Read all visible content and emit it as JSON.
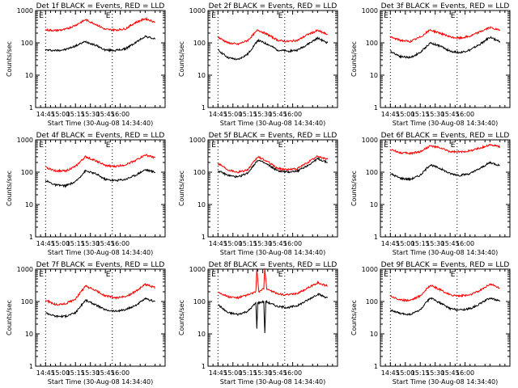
{
  "figure": {
    "title_template": "Det {det} BLACK = Events, RED = LLD",
    "ylabel": "Counts/sec",
    "xlabel": "Start Time (30-Aug-08 14:34:40)",
    "e_marker": "E",
    "colors": {
      "events": "#000000",
      "lld": "#ff0000"
    }
  },
  "chart_data": [
    {
      "type": "line",
      "title": "Det 1f BLACK = Events, RED = LLD",
      "xlabel": "Start Time (30-Aug-08 14:34:40)",
      "ylabel": "Counts/sec",
      "yscale": "log",
      "ylim": [
        1,
        1000
      ],
      "yticks": [
        "1",
        "10",
        "100",
        "1000"
      ],
      "xticks": [
        "14:45",
        "15:00",
        "15:15",
        "15:30",
        "15:45",
        "16:00"
      ],
      "eclipse_markers": [
        "14:45",
        "15:52"
      ],
      "series": [
        {
          "color": "#000000",
          "x_min": [
            0,
            10,
            20,
            30,
            40,
            50,
            60,
            70,
            80,
            90,
            100,
            110
          ],
          "values": [
            60,
            58,
            62,
            80,
            110,
            85,
            60,
            58,
            65,
            100,
            160,
            130
          ]
        },
        {
          "color": "#ff0000",
          "x_min": [
            0,
            10,
            20,
            30,
            40,
            50,
            60,
            70,
            80,
            90,
            100,
            110
          ],
          "values": [
            250,
            240,
            260,
            350,
            520,
            380,
            260,
            250,
            270,
            420,
            560,
            440
          ]
        }
      ]
    },
    {
      "type": "line",
      "title": "Det 2f BLACK = Events, RED = LLD",
      "xlabel": "Start Time (30-Aug-08 14:34:40)",
      "ylabel": "Counts/sec",
      "yscale": "log",
      "ylim": [
        1,
        1000
      ],
      "yticks": [
        "1",
        "10",
        "100",
        "1000"
      ],
      "xticks": [
        "14:45",
        "15:00",
        "15:15",
        "15:30",
        "15:45",
        "16:00"
      ],
      "eclipse_markers": [
        "14:45",
        "15:52"
      ],
      "series": [
        {
          "color": "#000000",
          "x_min": [
            0,
            10,
            20,
            30,
            40,
            50,
            60,
            70,
            80,
            90,
            100,
            110
          ],
          "values": [
            60,
            35,
            30,
            45,
            120,
            90,
            60,
            55,
            60,
            90,
            140,
            100
          ]
        },
        {
          "color": "#ff0000",
          "x_min": [
            0,
            10,
            20,
            30,
            40,
            50,
            60,
            70,
            80,
            90,
            100,
            110
          ],
          "values": [
            150,
            100,
            90,
            120,
            250,
            180,
            120,
            110,
            120,
            180,
            240,
            180
          ]
        }
      ]
    },
    {
      "type": "line",
      "title": "Det 3f BLACK = Events, RED = LLD",
      "xlabel": "Start Time (30-Aug-08 14:34:40)",
      "ylabel": "Counts/sec",
      "yscale": "log",
      "ylim": [
        1,
        1000
      ],
      "yticks": [
        "1",
        "10",
        "100",
        "1000"
      ],
      "xticks": [
        "14:45",
        "15:00",
        "15:15",
        "15:30",
        "15:45",
        "16:00"
      ],
      "eclipse_markers": [
        "14:45",
        "15:52"
      ],
      "series": [
        {
          "color": "#000000",
          "x_min": [
            0,
            10,
            20,
            30,
            40,
            50,
            60,
            70,
            80,
            90,
            100,
            110
          ],
          "values": [
            55,
            38,
            35,
            50,
            100,
            80,
            55,
            50,
            60,
            90,
            150,
            110
          ]
        },
        {
          "color": "#ff0000",
          "x_min": [
            0,
            10,
            20,
            30,
            40,
            50,
            60,
            70,
            80,
            90,
            100,
            110
          ],
          "values": [
            150,
            120,
            110,
            150,
            250,
            200,
            150,
            140,
            160,
            220,
            300,
            240
          ]
        }
      ]
    },
    {
      "type": "line",
      "title": "Det 4f BLACK = Events, RED = LLD",
      "xlabel": "Start Time (30-Aug-08 14:34:40)",
      "ylabel": "Counts/sec",
      "yscale": "log",
      "ylim": [
        1,
        1000
      ],
      "yticks": [
        "1",
        "10",
        "100",
        "1000"
      ],
      "xticks": [
        "14:45",
        "15:00",
        "15:15",
        "15:30",
        "15:45",
        "16:00"
      ],
      "eclipse_markers": [
        "14:45",
        "15:52"
      ],
      "series": [
        {
          "color": "#000000",
          "x_min": [
            0,
            10,
            20,
            30,
            40,
            50,
            60,
            70,
            80,
            90,
            100,
            110
          ],
          "values": [
            55,
            40,
            38,
            50,
            110,
            90,
            60,
            55,
            60,
            80,
            120,
            100
          ]
        },
        {
          "color": "#ff0000",
          "x_min": [
            0,
            10,
            20,
            30,
            40,
            50,
            60,
            70,
            80,
            90,
            100,
            110
          ],
          "values": [
            140,
            110,
            110,
            150,
            300,
            230,
            160,
            150,
            170,
            230,
            340,
            280
          ]
        }
      ]
    },
    {
      "type": "line",
      "title": "Det 5f BLACK = Events, RED = LLD",
      "xlabel": "Start Time (30-Aug-08 14:34:40)",
      "ylabel": "Counts/sec",
      "yscale": "log",
      "ylim": [
        1,
        1000
      ],
      "yticks": [
        "1",
        "10",
        "100",
        "1000"
      ],
      "xticks": [
        "14:45",
        "15:00",
        "15:15",
        "15:30",
        "15:45",
        "16:00"
      ],
      "eclipse_markers": [
        "14:45",
        "15:52"
      ],
      "series": [
        {
          "color": "#000000",
          "x_min": [
            0,
            10,
            20,
            30,
            40,
            50,
            60,
            70,
            80,
            90,
            100,
            110
          ],
          "values": [
            110,
            80,
            70,
            95,
            240,
            170,
            110,
            100,
            110,
            160,
            260,
            200
          ]
        },
        {
          "color": "#ff0000",
          "x_min": [
            0,
            10,
            20,
            30,
            40,
            50,
            60,
            70,
            80,
            90,
            100,
            110
          ],
          "values": [
            190,
            120,
            100,
            120,
            300,
            210,
            130,
            120,
            130,
            200,
            310,
            250
          ]
        }
      ]
    },
    {
      "type": "line",
      "title": "Det 6f BLACK = Events, RED = LLD",
      "xlabel": "Start Time (30-Aug-08 14:34:40)",
      "ylabel": "Counts/sec",
      "yscale": "log",
      "ylim": [
        1,
        1000
      ],
      "yticks": [
        "1",
        "10",
        "100",
        "1000"
      ],
      "xticks": [
        "14:45",
        "15:00",
        "15:15",
        "15:30",
        "15:45",
        "16:00"
      ],
      "eclipse_markers": [
        "14:45",
        "15:52"
      ],
      "series": [
        {
          "color": "#000000",
          "x_min": [
            0,
            10,
            20,
            30,
            40,
            50,
            60,
            70,
            80,
            90,
            100,
            110
          ],
          "values": [
            90,
            65,
            60,
            80,
            170,
            130,
            90,
            80,
            90,
            130,
            200,
            160
          ]
        },
        {
          "color": "#ff0000",
          "x_min": [
            0,
            10,
            20,
            30,
            40,
            50,
            60,
            70,
            80,
            90,
            100,
            110
          ],
          "values": [
            500,
            400,
            380,
            430,
            650,
            560,
            430,
            420,
            460,
            560,
            700,
            620
          ]
        }
      ]
    },
    {
      "type": "line",
      "title": "Det 7f BLACK = Events, RED = LLD",
      "xlabel": "Start Time (30-Aug-08 14:34:40)",
      "ylabel": "Counts/sec",
      "yscale": "log",
      "ylim": [
        1,
        1000
      ],
      "yticks": [
        "1",
        "10",
        "100",
        "1000"
      ],
      "xticks": [
        "14:45",
        "15:00",
        "15:15",
        "15:30",
        "15:45",
        "16:00"
      ],
      "eclipse_markers": [
        "14:45",
        "15:52"
      ],
      "series": [
        {
          "color": "#000000",
          "x_min": [
            0,
            10,
            20,
            30,
            40,
            50,
            60,
            70,
            80,
            90,
            100,
            110
          ],
          "values": [
            45,
            35,
            35,
            45,
            110,
            80,
            55,
            50,
            55,
            75,
            120,
            100
          ]
        },
        {
          "color": "#ff0000",
          "x_min": [
            0,
            10,
            20,
            30,
            40,
            50,
            60,
            70,
            80,
            90,
            100,
            110
          ],
          "values": [
            110,
            80,
            85,
            120,
            300,
            220,
            150,
            130,
            140,
            200,
            340,
            270
          ]
        }
      ]
    },
    {
      "type": "line",
      "title": "Det 8f BLACK = Events, RED = LLD",
      "xlabel": "Start Time (30-Aug-08 14:34:40)",
      "ylabel": "Counts/sec",
      "yscale": "log",
      "ylim": [
        1,
        1000
      ],
      "yticks": [
        "1",
        "10",
        "100",
        "1000"
      ],
      "xticks": [
        "14:45",
        "15:00",
        "15:15",
        "15:30",
        "15:45",
        "16:00"
      ],
      "eclipse_markers": [
        "14:45",
        "15:52"
      ],
      "series": [
        {
          "color": "#000000",
          "x_min": [
            0,
            10,
            20,
            30,
            38,
            39,
            40,
            46,
            47,
            48,
            60,
            70,
            80,
            90,
            100,
            110
          ],
          "values": [
            80,
            45,
            40,
            50,
            90,
            15,
            90,
            100,
            10,
            100,
            70,
            65,
            75,
            110,
            170,
            130
          ]
        },
        {
          "color": "#ff0000",
          "x_min": [
            0,
            10,
            20,
            30,
            38,
            39,
            41,
            46,
            47,
            49,
            60,
            70,
            80,
            90,
            100,
            110
          ],
          "values": [
            200,
            140,
            130,
            160,
            200,
            1000,
            200,
            250,
            1000,
            250,
            170,
            160,
            180,
            260,
            380,
            300
          ]
        }
      ]
    },
    {
      "type": "line",
      "title": "Det 9f BLACK = Events, RED = LLD",
      "xlabel": "Start Time (30-Aug-08 14:34:40)",
      "ylabel": "Counts/sec",
      "yscale": "log",
      "ylim": [
        1,
        1000
      ],
      "yticks": [
        "1",
        "10",
        "100",
        "1000"
      ],
      "xticks": [
        "14:45",
        "15:00",
        "15:15",
        "15:30",
        "15:45",
        "16:00"
      ],
      "eclipse_markers": [
        "14:45",
        "15:52"
      ],
      "series": [
        {
          "color": "#000000",
          "x_min": [
            0,
            10,
            20,
            30,
            40,
            50,
            60,
            70,
            80,
            90,
            100,
            110
          ],
          "values": [
            55,
            42,
            40,
            55,
            130,
            90,
            60,
            55,
            60,
            85,
            130,
            100
          ]
        },
        {
          "color": "#ff0000",
          "x_min": [
            0,
            10,
            20,
            30,
            40,
            50,
            60,
            70,
            80,
            90,
            100,
            110
          ],
          "values": [
            150,
            110,
            110,
            150,
            320,
            230,
            160,
            150,
            160,
            220,
            350,
            260
          ]
        }
      ]
    }
  ]
}
